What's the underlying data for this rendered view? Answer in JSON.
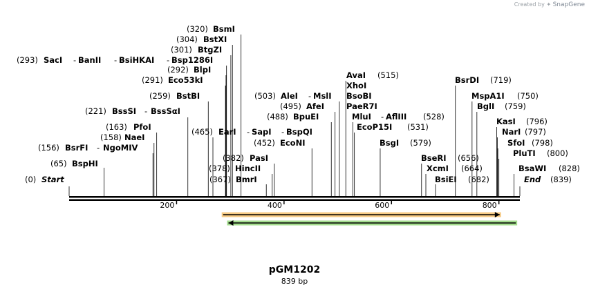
{
  "watermark": {
    "prefix": "Created by",
    "brand": "SnapGene"
  },
  "plasmid": {
    "name": "pGM1202",
    "length_label": "839 bp",
    "length": 839
  },
  "ruler": {
    "ticks": [
      "200",
      "400",
      "600",
      "800"
    ],
    "tick_values": [
      200,
      400,
      600,
      800
    ]
  },
  "features": [
    {
      "name": "orange-feature-arrow",
      "start": 284,
      "end": 804,
      "direction": "forward",
      "color": "#f0a020"
    },
    {
      "name": "green-feature-arrow",
      "start": 294,
      "end": 834,
      "direction": "reverse",
      "color": "#58c030"
    }
  ],
  "labels": [
    {
      "id": "start",
      "pos": 0,
      "num": "(0)",
      "text": "Start",
      "style": "it"
    },
    {
      "id": "bsphi",
      "pos": 65,
      "num": "(65)",
      "text": "BspHI"
    },
    {
      "id": "bsrfi",
      "pos": 156,
      "num": "(156)",
      "text": "BsrFI",
      "extra": "NgoMIV"
    },
    {
      "id": "naei",
      "pos": 158,
      "num": "(158)",
      "text": "NaeI"
    },
    {
      "id": "pfoi",
      "pos": 163,
      "num": "(163)",
      "text": "PfoI"
    },
    {
      "id": "bsssi",
      "pos": 221,
      "num": "(221)",
      "text": "BssSI",
      "extra": "BssSαI"
    },
    {
      "id": "bstbi",
      "pos": 259,
      "num": "(259)",
      "text": "BstBI"
    },
    {
      "id": "eco53ki",
      "pos": 291,
      "num": "(291)",
      "text": "Eco53kI"
    },
    {
      "id": "blpi",
      "pos": 292,
      "num": "(292)",
      "text": "BlpI"
    },
    {
      "id": "saci",
      "pos": 293,
      "num": "(293)",
      "text": "SacI",
      "extra": "BanII",
      "extra2": "BsiHKAI",
      "extra3": "Bsp1286I"
    },
    {
      "id": "btgzi",
      "pos": 301,
      "num": "(301)",
      "text": "BtgZI"
    },
    {
      "id": "bstxi",
      "pos": 304,
      "num": "(304)",
      "text": "BstXI"
    },
    {
      "id": "bsmi",
      "pos": 320,
      "num": "(320)",
      "text": "BsmI"
    },
    {
      "id": "eari",
      "pos": 465,
      "num": "(465)",
      "text": "EarI",
      "extra": "SapI",
      "extra2": "BspQI"
    },
    {
      "id": "bmri",
      "pos": 367,
      "num": "(367)",
      "text": "BmrI"
    },
    {
      "id": "hincii",
      "pos": 378,
      "num": "(378)",
      "text": "HincII"
    },
    {
      "id": "pasi",
      "pos": 382,
      "num": "(382)",
      "text": "PasI"
    },
    {
      "id": "econi",
      "pos": 452,
      "num": "(452)",
      "text": "EcoNI"
    },
    {
      "id": "bpuei",
      "pos": 488,
      "num": "(488)",
      "text": "BpuEI"
    },
    {
      "id": "afei",
      "pos": 495,
      "num": "(495)",
      "text": "AfeI"
    },
    {
      "id": "alei",
      "pos": 503,
      "num": "(503)",
      "text": "AleI",
      "extra": "MslI"
    },
    {
      "id": "avai",
      "pos": 515,
      "num": "(515)",
      "text": "AvaI",
      "more": [
        "XhoI",
        "BsoBI",
        "PaeR7I"
      ]
    },
    {
      "id": "mlui",
      "pos": 528,
      "num": "(528)",
      "text": "MluI",
      "extra": "AflIII"
    },
    {
      "id": "ecop15i",
      "pos": 531,
      "num": "(531)",
      "text": "EcoP15I"
    },
    {
      "id": "bsgi",
      "pos": 579,
      "num": "(579)",
      "text": "BsgI"
    },
    {
      "id": "bseri",
      "pos": 656,
      "num": "(656)",
      "text": "BseRI"
    },
    {
      "id": "xcmi",
      "pos": 664,
      "num": "(664)",
      "text": "XcmI"
    },
    {
      "id": "bsiei",
      "pos": 682,
      "num": "(682)",
      "text": "BsiEI"
    },
    {
      "id": "bsrdi",
      "pos": 719,
      "num": "(719)",
      "text": "BsrDI"
    },
    {
      "id": "mspa1i",
      "pos": 750,
      "num": "(750)",
      "text": "MspA1I"
    },
    {
      "id": "bgli",
      "pos": 759,
      "num": "(759)",
      "text": "BglI"
    },
    {
      "id": "kasi",
      "pos": 796,
      "num": "(796)",
      "text": "KasI"
    },
    {
      "id": "nari",
      "pos": 797,
      "num": "(797)",
      "text": "NarI"
    },
    {
      "id": "sfoi",
      "pos": 798,
      "num": "(798)",
      "text": "SfoI"
    },
    {
      "id": "pluti",
      "pos": 800,
      "num": "(800)",
      "text": "PluTI"
    },
    {
      "id": "bsawi",
      "pos": 828,
      "num": "(828)",
      "text": "BsaWI"
    },
    {
      "id": "end",
      "pos": 839,
      "num": "(839)",
      "text": "End",
      "style": "it"
    }
  ]
}
